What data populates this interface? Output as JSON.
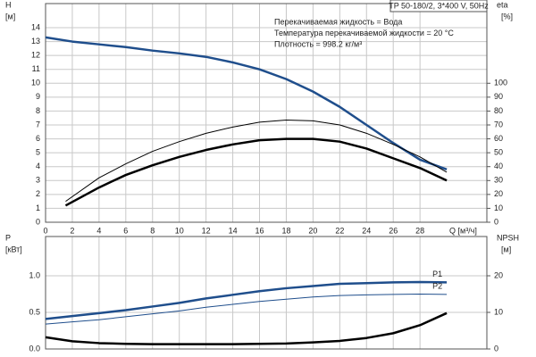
{
  "chart_data": [
    {
      "type": "line",
      "title": "TP 50-180/2, 3*400 V, 50Hz",
      "annotations": [
        "Перекачиваемая жидкость = Вода",
        "Температура перекачиваемой жидкости = 20 °C",
        "Плотность = 998.2 кг/м³"
      ],
      "ylabel": [
        "H",
        "[м]"
      ],
      "y2label": [
        "eta",
        "[%]"
      ],
      "xlabel": "Q [м³/ч]",
      "xlim": [
        0,
        33
      ],
      "xticks": [
        0,
        2,
        4,
        6,
        8,
        10,
        12,
        14,
        16,
        18,
        20,
        22,
        24,
        26,
        28
      ],
      "ylim": [
        0,
        14
      ],
      "yticks": [
        0,
        1,
        2,
        3,
        4,
        5,
        6,
        7,
        8,
        9,
        10,
        11,
        12,
        13,
        14
      ],
      "y2lim": [
        0,
        140
      ],
      "y2ticks": [
        0,
        10,
        20,
        30,
        40,
        50,
        60,
        70,
        80,
        90,
        100
      ],
      "grid": true,
      "series": [
        {
          "color": "#1f4e8c",
          "width": 2.5,
          "x": [
            0,
            2,
            4,
            6,
            8,
            10,
            12,
            14,
            16,
            18,
            20,
            22,
            24,
            26,
            28,
            30
          ],
          "values": [
            13.3,
            13.0,
            12.8,
            12.6,
            12.35,
            12.15,
            11.9,
            11.5,
            11.0,
            10.3,
            9.4,
            8.3,
            7.0,
            5.7,
            4.5,
            3.8
          ]
        },
        {
          "color": "#000000",
          "width": 1,
          "axis": "y2",
          "x": [
            1.5,
            4,
            6,
            8,
            10,
            12,
            14,
            16,
            18,
            20,
            22,
            24,
            26,
            28,
            30
          ],
          "values": [
            15,
            32,
            42,
            51,
            58,
            64,
            68.5,
            72,
            73.5,
            73,
            70,
            64,
            56,
            47,
            36
          ]
        },
        {
          "color": "#000000",
          "width": 2.5,
          "axis": "y2",
          "x": [
            1.5,
            4,
            6,
            8,
            10,
            12,
            14,
            16,
            18,
            20,
            22,
            24,
            26,
            28,
            30
          ],
          "values": [
            12,
            25,
            34,
            41,
            47,
            52,
            56,
            59,
            60,
            60,
            58,
            53,
            46,
            39,
            30
          ]
        }
      ]
    },
    {
      "type": "line",
      "ylabel": [
        "P",
        "[кВт]"
      ],
      "y2label": [
        "NPSH",
        "[м]"
      ],
      "xlim": [
        0,
        33
      ],
      "xticks": [
        0,
        2,
        4,
        6,
        8,
        10,
        12,
        14,
        16,
        18,
        20,
        22,
        24,
        26,
        28
      ],
      "ylim": [
        0,
        1.25
      ],
      "yticks": [
        {
          "value": 0,
          "label": "0.0"
        },
        {
          "value": 0.5,
          "label": "0.5"
        },
        {
          "value": 1,
          "label": "1.0"
        }
      ],
      "y2lim": [
        0,
        25
      ],
      "y2ticks": [
        0,
        10,
        20
      ],
      "grid": true,
      "series": [
        {
          "name": "P1",
          "color": "#1f4e8c",
          "width": 2.5,
          "x": [
            0,
            2,
            4,
            6,
            8,
            10,
            12,
            14,
            16,
            18,
            20,
            22,
            24,
            26,
            28,
            30
          ],
          "values": [
            0.41,
            0.45,
            0.49,
            0.53,
            0.58,
            0.63,
            0.69,
            0.74,
            0.79,
            0.83,
            0.86,
            0.89,
            0.9,
            0.91,
            0.915,
            0.91
          ]
        },
        {
          "name": "P2",
          "color": "#1f4e8c",
          "width": 1,
          "x": [
            0,
            2,
            4,
            6,
            8,
            10,
            12,
            14,
            16,
            18,
            20,
            22,
            24,
            26,
            28,
            30
          ],
          "values": [
            0.34,
            0.37,
            0.4,
            0.44,
            0.48,
            0.52,
            0.57,
            0.61,
            0.65,
            0.68,
            0.71,
            0.73,
            0.74,
            0.745,
            0.75,
            0.745
          ]
        },
        {
          "color": "#000000",
          "width": 2.5,
          "axis": "y2",
          "x": [
            0,
            2,
            4,
            6,
            8,
            10,
            12,
            14,
            16,
            18,
            20,
            22,
            24,
            26,
            28,
            30
          ],
          "values": [
            3.2,
            2.1,
            1.6,
            1.4,
            1.3,
            1.3,
            1.3,
            1.3,
            1.4,
            1.5,
            1.8,
            2.2,
            3.0,
            4.3,
            6.5,
            9.8
          ]
        }
      ]
    }
  ]
}
